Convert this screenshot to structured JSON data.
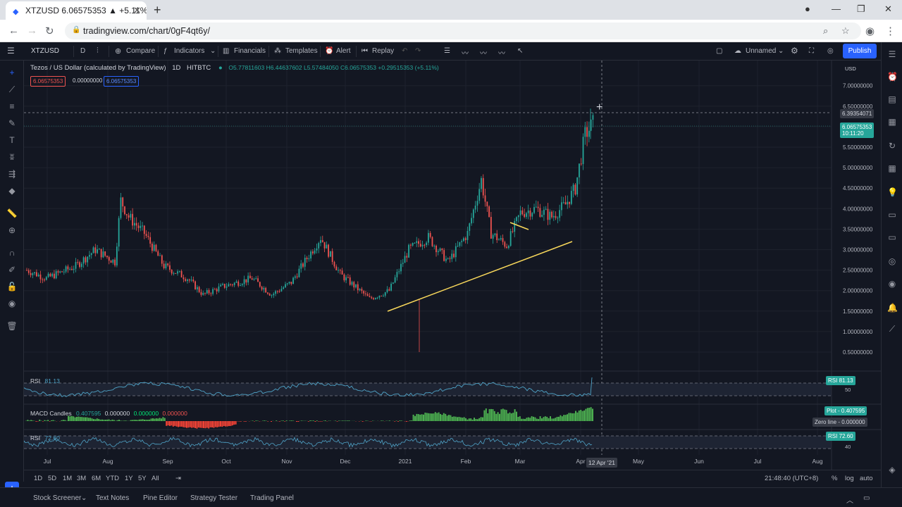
{
  "browser": {
    "tab_title": "XTZUSD 6.06575353 ▲ +5.11% U",
    "url": "tradingview.com/chart/0gF4qt6y/"
  },
  "toolbar": {
    "symbol": "XTZUSD",
    "interval": "D",
    "compare": "Compare",
    "indicators": "Indicators",
    "financials": "Financials",
    "templates": "Templates",
    "alert": "Alert",
    "replay": "Replay",
    "layout_name": "Unnamed",
    "publish": "Publish"
  },
  "legend": {
    "title": "Tezos / US Dollar (calculated by TradingView)",
    "interval": "1D",
    "exchange": "HITBTC",
    "ohlc": "O5.77811603 H6.44637602 L5.57484050 C6.06575353 +0.29515353 (+5.11%)",
    "bid": "6.06575353",
    "spread": "0.00000000",
    "ask": "6.06575353"
  },
  "price_axis": {
    "currency": "USD",
    "ticks": [
      "7.00000000",
      "6.50000000",
      "6.00000000",
      "5.50000000",
      "5.00000000",
      "4.50000000",
      "4.00000000",
      "3.50000000",
      "3.00000000",
      "2.50000000",
      "2.00000000",
      "1.50000000",
      "1.00000000",
      "0.50000000"
    ],
    "crosshair_price": "6.39354071",
    "last_price": "6.06575353",
    "countdown": "10:11:20"
  },
  "time_axis": {
    "labels": [
      "Jul",
      "Aug",
      "Sep",
      "Oct",
      "Nov",
      "Dec",
      "2021",
      "Feb",
      "Mar",
      "Apr",
      "May",
      "Jun",
      "Jul",
      "Aug"
    ],
    "crosshair_date": "12 Apr '21"
  },
  "rsi1": {
    "label": "RSI",
    "value": "81.13",
    "axis_label": "RSI",
    "level": "50"
  },
  "macd": {
    "label": "MACD Candles",
    "v1": "0.407595",
    "v2": "0.000000",
    "v3": "0.000000",
    "v4": "0.000000",
    "plot_label": "Plot",
    "plot_value": "0.407595",
    "zero_label": "Zero line",
    "zero_value": "0.000000"
  },
  "rsi2": {
    "label": "RSI",
    "value": "72.60",
    "axis_label": "RSI",
    "level": "40"
  },
  "timeframes": [
    "1D",
    "5D",
    "1M",
    "3M",
    "6M",
    "YTD",
    "1Y",
    "5Y",
    "All"
  ],
  "clock": "21:48:40 (UTC+8)",
  "scale_opts": [
    "%",
    "log",
    "auto"
  ],
  "bottom_tabs": [
    "Stock Screener",
    "Text Notes",
    "Pine Editor",
    "Strategy Tester",
    "Trading Panel"
  ],
  "colors": {
    "up": "#26a69a",
    "down": "#ef5350",
    "trendline": "#f9d85b",
    "rsi": "#4fa3c7",
    "accent": "#2962ff"
  },
  "chart_data": {
    "type": "candlestick",
    "title": "Tezos / US Dollar (calculated by TradingView)",
    "ylim": [
      0.25,
      7.3
    ],
    "monthly_close_approx": [
      {
        "month": "Jul",
        "close": 2.5
      },
      {
        "month": "Aug",
        "close": 3.3
      },
      {
        "month": "Sep",
        "close": 2.2
      },
      {
        "month": "Oct",
        "close": 2.1
      },
      {
        "month": "Nov",
        "close": 2.0
      },
      {
        "month": "Dec",
        "close": 2.2
      },
      {
        "month": "2021",
        "close": 2.5
      },
      {
        "month": "Feb",
        "close": 3.6
      },
      {
        "month": "Mar",
        "close": 4.0
      },
      {
        "month": "Apr",
        "close": 6.07
      }
    ]
  }
}
